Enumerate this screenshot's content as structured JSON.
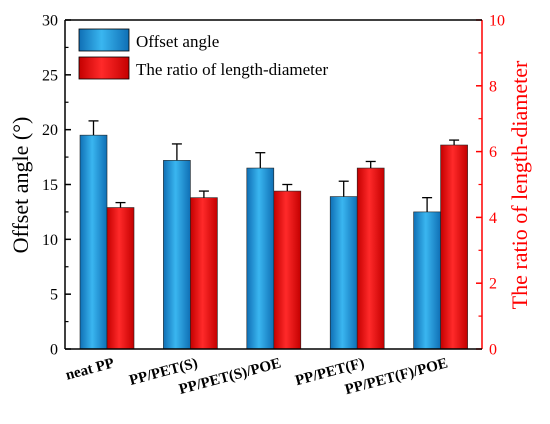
{
  "chart_data": {
    "type": "bar",
    "categories": [
      "neat PP",
      "PP/PET(S)",
      "PP/PET(S)/POE",
      "PP/PET(F)",
      "PP/PET(F)/POE"
    ],
    "series": [
      {
        "name": "Offset angle",
        "axis": "left",
        "color": "#1c97d8",
        "values": [
          19.5,
          17.2,
          16.5,
          13.9,
          12.5
        ],
        "errors": [
          1.3,
          1.5,
          1.4,
          1.4,
          1.3
        ]
      },
      {
        "name": "The ratio of length-diameter",
        "axis": "right",
        "color": "#ee0a0a",
        "values": [
          4.3,
          4.6,
          4.8,
          5.5,
          6.2
        ],
        "errors": [
          0.15,
          0.2,
          0.2,
          0.2,
          0.15
        ]
      }
    ],
    "ylabel": "Offset angle (°)",
    "ylabel_right": "The ratio of length-diameter",
    "ylim": [
      0,
      30
    ],
    "ylim_right": [
      0,
      10
    ],
    "yticks": [
      "0",
      "5",
      "10",
      "15",
      "20",
      "25",
      "30"
    ],
    "yticks_right": [
      "0",
      "2",
      "4",
      "6",
      "8",
      "10"
    ],
    "legend_position": "top-left",
    "grid": false
  }
}
